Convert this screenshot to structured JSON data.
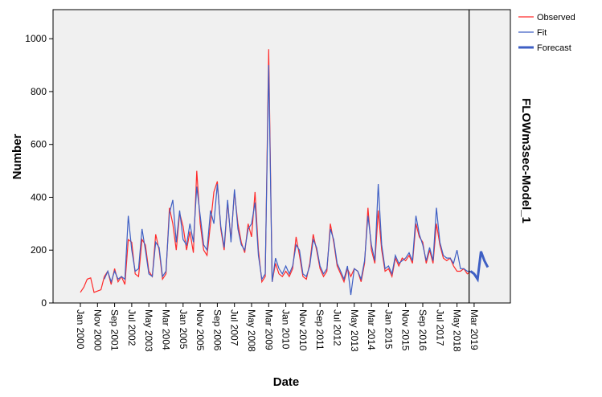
{
  "chart_data": {
    "type": "line",
    "y_label": "Number",
    "x_label": "Date",
    "model_label": "FLOWm3sec-Model_1",
    "ylim": [
      0,
      1110
    ],
    "yticks": [
      0,
      200,
      400,
      600,
      800,
      1000
    ],
    "categories": [
      "Jan 2000",
      null,
      null,
      null,
      null,
      "Nov 2000",
      null,
      null,
      null,
      null,
      "Sep 2001",
      null,
      null,
      null,
      null,
      "Jul 2002",
      null,
      null,
      null,
      null,
      "May 2003",
      null,
      null,
      null,
      null,
      "Mar 2004",
      null,
      null,
      null,
      null,
      "Jan 2005",
      null,
      null,
      null,
      null,
      "Nov 2005",
      null,
      null,
      null,
      null,
      "Sep 2006",
      null,
      null,
      null,
      null,
      "Jul 2007",
      null,
      null,
      null,
      null,
      "May 2008",
      null,
      null,
      null,
      null,
      "Mar 2009",
      null,
      null,
      null,
      null,
      "Jan 2010",
      null,
      null,
      null,
      null,
      "Nov 2010",
      null,
      null,
      null,
      null,
      "Sep 2011",
      null,
      null,
      null,
      null,
      "Jul 2012",
      null,
      null,
      null,
      null,
      "May 2013",
      null,
      null,
      null,
      null,
      "Mar 2014",
      null,
      null,
      null,
      null,
      "Jan 2015",
      null,
      null,
      null,
      null,
      "Nov 2015",
      null,
      null,
      null,
      null,
      "Sep 2016",
      null,
      null,
      null,
      null,
      "Jul 2017",
      null,
      null,
      null,
      null,
      "May 2018",
      null,
      null,
      null,
      null,
      "Mar 2019",
      null,
      null,
      null,
      null
    ],
    "series": [
      {
        "name": "Observed",
        "color": "#ff2a2a",
        "width": 1.2,
        "values": [
          40,
          60,
          90,
          95,
          40,
          45,
          50,
          100,
          120,
          70,
          130,
          80,
          100,
          70,
          240,
          230,
          110,
          100,
          240,
          220,
          120,
          100,
          260,
          200,
          90,
          110,
          360,
          300,
          200,
          340,
          290,
          200,
          270,
          190,
          500,
          300,
          200,
          180,
          300,
          420,
          460,
          280,
          200,
          380,
          240,
          420,
          300,
          230,
          190,
          300,
          250,
          420,
          200,
          80,
          100,
          960,
          80,
          150,
          110,
          100,
          120,
          100,
          130,
          250,
          180,
          100,
          90,
          150,
          260,
          200,
          130,
          100,
          120,
          300,
          230,
          140,
          110,
          80,
          130,
          100,
          130,
          120,
          80,
          150,
          360,
          200,
          150,
          350,
          200,
          120,
          130,
          100,
          170,
          140,
          170,
          160,
          180,
          150,
          300,
          250,
          230,
          150,
          200,
          150,
          300,
          220,
          170,
          160,
          170,
          140,
          120,
          120,
          130,
          110,
          120,
          null,
          null,
          null,
          null,
          null
        ]
      },
      {
        "name": "Fit",
        "color": "#3e5fc4",
        "width": 1.2,
        "values": [
          null,
          null,
          null,
          null,
          null,
          null,
          null,
          90,
          120,
          80,
          120,
          90,
          100,
          90,
          330,
          200,
          120,
          130,
          280,
          200,
          110,
          100,
          230,
          210,
          100,
          120,
          340,
          390,
          230,
          350,
          240,
          220,
          300,
          230,
          440,
          330,
          220,
          200,
          350,
          300,
          450,
          290,
          210,
          390,
          230,
          430,
          280,
          220,
          200,
          280,
          300,
          380,
          180,
          90,
          110,
          900,
          80,
          170,
          130,
          110,
          140,
          110,
          140,
          220,
          200,
          110,
          100,
          140,
          240,
          210,
          140,
          110,
          130,
          280,
          240,
          150,
          120,
          90,
          140,
          30,
          130,
          120,
          90,
          160,
          330,
          220,
          160,
          450,
          220,
          130,
          140,
          110,
          180,
          150,
          160,
          170,
          190,
          160,
          330,
          260,
          220,
          160,
          210,
          160,
          360,
          230,
          180,
          170,
          170,
          150,
          200,
          130,
          130,
          120,
          120,
          null,
          null,
          null,
          null,
          null
        ]
      },
      {
        "name": "Forecast",
        "color": "#3e5fc4",
        "width": 3,
        "values": [
          null,
          null,
          null,
          null,
          null,
          null,
          null,
          null,
          null,
          null,
          null,
          null,
          null,
          null,
          null,
          null,
          null,
          null,
          null,
          null,
          null,
          null,
          null,
          null,
          null,
          null,
          null,
          null,
          null,
          null,
          null,
          null,
          null,
          null,
          null,
          null,
          null,
          null,
          null,
          null,
          null,
          null,
          null,
          null,
          null,
          null,
          null,
          null,
          null,
          null,
          null,
          null,
          null,
          null,
          null,
          null,
          null,
          null,
          null,
          null,
          null,
          null,
          null,
          null,
          null,
          null,
          null,
          null,
          null,
          null,
          null,
          null,
          null,
          null,
          null,
          null,
          null,
          null,
          null,
          null,
          null,
          null,
          null,
          null,
          null,
          null,
          null,
          null,
          null,
          null,
          null,
          null,
          null,
          null,
          null,
          null,
          null,
          null,
          null,
          null,
          null,
          null,
          null,
          null,
          null,
          null,
          null,
          null,
          null,
          null,
          null,
          null,
          null,
          null,
          120,
          110,
          90,
          195,
          160,
          135
        ]
      }
    ]
  }
}
